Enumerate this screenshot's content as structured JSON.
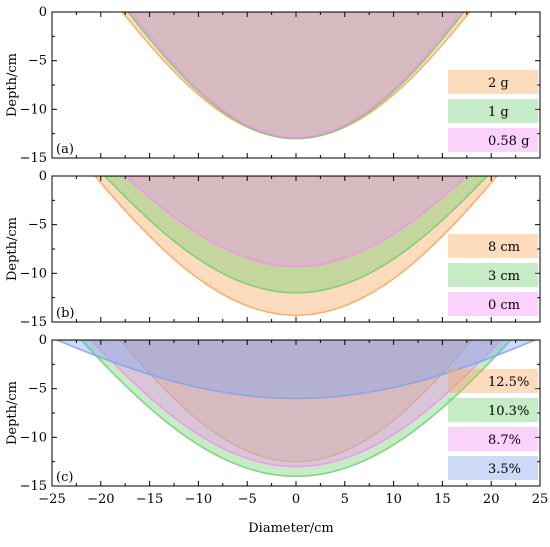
{
  "chart_data": [
    {
      "type": "area",
      "panel_label": "(a)",
      "ylabel": "Depth/cm",
      "xlim": [
        -25,
        25
      ],
      "ylim": [
        -15,
        0
      ],
      "yticks": [
        0,
        -5,
        -10,
        -15
      ],
      "legend_position": "bottom-right",
      "series": [
        {
          "name": "2 g",
          "color": "#f9a65a",
          "halfwidth": 17.8,
          "depth": -13.0,
          "alpha": 0.4
        },
        {
          "name": "1 g",
          "color": "#6fcf6f",
          "halfwidth": 17.2,
          "depth": -13.0,
          "alpha": 0.4
        },
        {
          "name": "0.58 g",
          "color": "#f58ef5",
          "halfwidth": 16.9,
          "depth": -12.9,
          "alpha": 0.4
        }
      ]
    },
    {
      "type": "area",
      "panel_label": "(b)",
      "ylabel": "Depth/cm",
      "xlim": [
        -25,
        25
      ],
      "ylim": [
        -15,
        0
      ],
      "yticks": [
        0,
        -5,
        -10,
        -15
      ],
      "legend_position": "bottom-right",
      "series": [
        {
          "name": "8 cm",
          "color": "#f9a65a",
          "halfwidth": 20.6,
          "depth": -14.3,
          "alpha": 0.4
        },
        {
          "name": "3 cm",
          "color": "#6fcf6f",
          "halfwidth": 19.6,
          "depth": -12.0,
          "alpha": 0.4
        },
        {
          "name": "0 cm",
          "color": "#f58ef5",
          "halfwidth": 17.5,
          "depth": -9.3,
          "alpha": 0.4
        }
      ]
    },
    {
      "type": "area",
      "panel_label": "(c)",
      "ylabel": "Depth/cm",
      "xlabel": "Diameter/cm",
      "xlim": [
        -25,
        25
      ],
      "ylim": [
        -15,
        0
      ],
      "xticks": [
        -25,
        -20,
        -15,
        -10,
        -5,
        0,
        5,
        10,
        15,
        20,
        25
      ],
      "yticks": [
        0,
        -5,
        -10,
        -15
      ],
      "legend_position": "bottom-right",
      "series": [
        {
          "name": "12.5%",
          "color": "#f9a65a",
          "halfwidth": 18.0,
          "depth": -12.5,
          "alpha": 0.4
        },
        {
          "name": "10.3%",
          "color": "#6fcf6f",
          "halfwidth": 22.0,
          "depth": -14.0,
          "alpha": 0.4
        },
        {
          "name": "8.7%",
          "color": "#f58ef5",
          "halfwidth": 21.0,
          "depth": -13.0,
          "alpha": 0.4
        },
        {
          "name": "3.5%",
          "color": "#7fa3ea",
          "halfwidth": 24.5,
          "depth": -6.0,
          "alpha": 0.4
        }
      ]
    }
  ]
}
